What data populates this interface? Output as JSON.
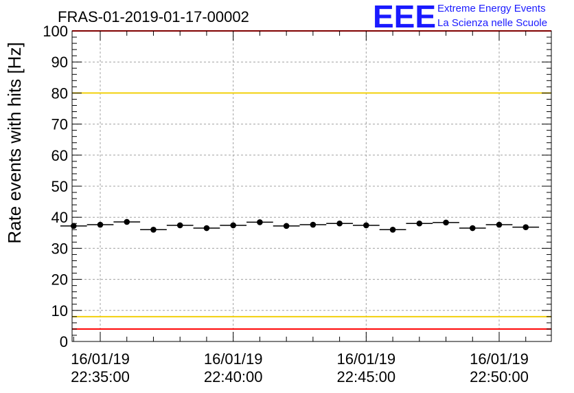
{
  "chart_data": {
    "type": "scatter",
    "title": "FRAS-01-2019-01-17-00002",
    "ylabel": "Rate events with hits [Hz]",
    "xlabel": "",
    "ylim": [
      0,
      100
    ],
    "yticks": [
      "0",
      "10",
      "20",
      "30",
      "40",
      "50",
      "60",
      "70",
      "80",
      "90",
      "100"
    ],
    "xticks": [
      {
        "date": "16/01/19",
        "time": "22:35:00"
      },
      {
        "date": "16/01/19",
        "time": "22:40:00"
      },
      {
        "date": "16/01/19",
        "time": "22:45:00"
      },
      {
        "date": "16/01/19",
        "time": "22:50:00"
      }
    ],
    "grid": true,
    "points": [
      {
        "t": "22:34:00",
        "y": 37.2
      },
      {
        "t": "22:35:00",
        "y": 37.6
      },
      {
        "t": "22:36:00",
        "y": 38.5
      },
      {
        "t": "22:37:00",
        "y": 36.0
      },
      {
        "t": "22:38:00",
        "y": 37.4
      },
      {
        "t": "22:39:00",
        "y": 36.5
      },
      {
        "t": "22:40:00",
        "y": 37.4
      },
      {
        "t": "22:41:00",
        "y": 38.4
      },
      {
        "t": "22:42:00",
        "y": 37.2
      },
      {
        "t": "22:43:00",
        "y": 37.6
      },
      {
        "t": "22:44:00",
        "y": 38.0
      },
      {
        "t": "22:45:00",
        "y": 37.4
      },
      {
        "t": "22:46:00",
        "y": 36.0
      },
      {
        "t": "22:47:00",
        "y": 38.0
      },
      {
        "t": "22:48:00",
        "y": 38.3
      },
      {
        "t": "22:49:00",
        "y": 36.5
      },
      {
        "t": "22:50:00",
        "y": 37.6
      },
      {
        "t": "22:51:00",
        "y": 36.8
      }
    ],
    "reference_lines": [
      {
        "y": 100,
        "color": "#ff0000"
      },
      {
        "y": 80,
        "color": "#f2d00a"
      },
      {
        "y": 8,
        "color": "#f2d00a"
      },
      {
        "y": 4,
        "color": "#ff0000"
      }
    ],
    "marker_color": "#000000"
  },
  "logo": {
    "mark": "EEE",
    "line1": "Extreme Energy Events",
    "line2": "La Scienza nelle Scuole"
  }
}
